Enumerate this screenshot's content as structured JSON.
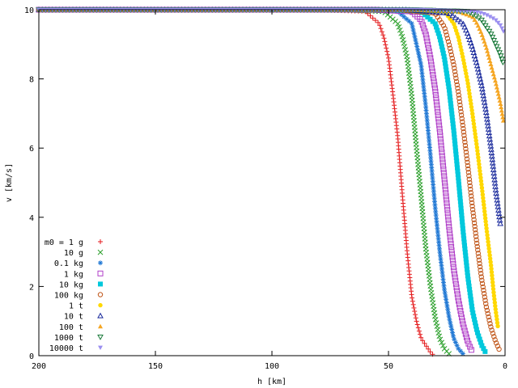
{
  "chart_data": {
    "type": "scatter",
    "title": "",
    "xlabel": "h [km]",
    "ylabel": "v [km/s]",
    "xlim": [
      200,
      0
    ],
    "ylim": [
      0,
      10
    ],
    "x_reversed": true,
    "x_ticks": [
      "200",
      "150",
      "100",
      "50",
      "0"
    ],
    "y_ticks": [
      "0",
      "2",
      "4",
      "6",
      "8",
      "10"
    ],
    "grid": false,
    "legend_position": "bottom-left",
    "series": [
      {
        "name": "m0 = 1 g",
        "color": "#e41a1c",
        "marker": "plus",
        "points": [
          [
            200,
            10
          ],
          [
            80,
            10
          ],
          [
            60,
            9.95
          ],
          [
            54,
            9.6
          ],
          [
            52,
            9.2
          ],
          [
            50,
            8.6
          ],
          [
            48,
            7.5
          ],
          [
            46,
            6.3
          ],
          [
            44,
            4.6
          ],
          [
            42,
            3.0
          ],
          [
            40,
            1.7
          ],
          [
            38,
            1.0
          ],
          [
            36,
            0.5
          ],
          [
            34,
            0.3
          ],
          [
            32,
            0.1
          ],
          [
            30.5,
            0.0
          ]
        ]
      },
      {
        "name": "10 g",
        "color": "#2ca02c",
        "marker": "cross",
        "points": [
          [
            200,
            10
          ],
          [
            70,
            10
          ],
          [
            52,
            9.95
          ],
          [
            46,
            9.6
          ],
          [
            44,
            9.2
          ],
          [
            42,
            8.6
          ],
          [
            40,
            7.5
          ],
          [
            38,
            6.0
          ],
          [
            36,
            4.6
          ],
          [
            34,
            3.1
          ],
          [
            32,
            2.0
          ],
          [
            30,
            1.1
          ],
          [
            28,
            0.5
          ],
          [
            26,
            0.2
          ],
          [
            24,
            0.05
          ]
        ]
      },
      {
        "name": "0.1 kg",
        "color": "#1f77d4",
        "marker": "star",
        "points": [
          [
            200,
            10
          ],
          [
            62,
            10
          ],
          [
            46,
            9.95
          ],
          [
            40,
            9.6
          ],
          [
            38,
            9.0
          ],
          [
            36,
            8.4
          ],
          [
            34,
            7.2
          ],
          [
            32,
            5.8
          ],
          [
            30,
            4.3
          ],
          [
            28,
            3.0
          ],
          [
            26,
            1.9
          ],
          [
            24,
            1.1
          ],
          [
            22,
            0.5
          ],
          [
            20,
            0.2
          ],
          [
            18,
            0.05
          ]
        ]
      },
      {
        "name": "1 kg",
        "color": "#b03fc8",
        "marker": "open-square",
        "points": [
          [
            200,
            10
          ],
          [
            56,
            10
          ],
          [
            40,
            9.95
          ],
          [
            36,
            9.7
          ],
          [
            34,
            9.3
          ],
          [
            32,
            8.6
          ],
          [
            30,
            7.7
          ],
          [
            28,
            6.5
          ],
          [
            26,
            5.1
          ],
          [
            24,
            3.7
          ],
          [
            22,
            2.5
          ],
          [
            20,
            1.6
          ],
          [
            18,
            0.9
          ],
          [
            16,
            0.4
          ],
          [
            14,
            0.1
          ]
        ]
      },
      {
        "name": "10 kg",
        "color": "#00c8dc",
        "marker": "filled-square",
        "points": [
          [
            200,
            10
          ],
          [
            50,
            10
          ],
          [
            36,
            9.95
          ],
          [
            30,
            9.6
          ],
          [
            28,
            9.2
          ],
          [
            26,
            8.6
          ],
          [
            24,
            7.7
          ],
          [
            22,
            6.5
          ],
          [
            20,
            5.1
          ],
          [
            18,
            3.6
          ],
          [
            16,
            2.3
          ],
          [
            14,
            1.3
          ],
          [
            12,
            0.7
          ],
          [
            10,
            0.3
          ],
          [
            8,
            0.05
          ]
        ]
      },
      {
        "name": "100 kg",
        "color": "#c0561a",
        "marker": "open-circle",
        "points": [
          [
            200,
            10
          ],
          [
            46,
            10
          ],
          [
            30,
            9.9
          ],
          [
            26,
            9.5
          ],
          [
            24,
            9.0
          ],
          [
            22,
            8.4
          ],
          [
            20,
            7.6
          ],
          [
            18,
            6.6
          ],
          [
            16,
            5.5
          ],
          [
            14,
            4.3
          ],
          [
            12,
            3.2
          ],
          [
            10,
            2.2
          ],
          [
            8,
            1.4
          ],
          [
            6,
            0.8
          ],
          [
            4,
            0.4
          ],
          [
            2,
            0.1
          ]
        ]
      },
      {
        "name": "1 t",
        "color": "#ffd800",
        "marker": "filled-circle",
        "points": [
          [
            200,
            10
          ],
          [
            44,
            10
          ],
          [
            26,
            9.95
          ],
          [
            22,
            9.6
          ],
          [
            20,
            9.2
          ],
          [
            18,
            8.6
          ],
          [
            16,
            7.9
          ],
          [
            14,
            7.0
          ],
          [
            12,
            6.0
          ],
          [
            10,
            4.9
          ],
          [
            8,
            3.7
          ],
          [
            6,
            2.6
          ],
          [
            5,
            1.9
          ],
          [
            4,
            1.3
          ],
          [
            3,
            0.8
          ]
        ]
      },
      {
        "name": "10 t",
        "color": "#1a2a9c",
        "marker": "open-triangle",
        "points": [
          [
            200,
            10
          ],
          [
            42,
            10
          ],
          [
            24,
            9.9
          ],
          [
            18,
            9.6
          ],
          [
            16,
            9.3
          ],
          [
            14,
            8.9
          ],
          [
            12,
            8.4
          ],
          [
            10,
            7.8
          ],
          [
            8,
            7.0
          ],
          [
            6,
            6.0
          ],
          [
            4,
            4.8
          ],
          [
            2,
            3.8
          ]
        ]
      },
      {
        "name": "100 t",
        "color": "#f5a623",
        "marker": "filled-triangle",
        "points": [
          [
            200,
            10
          ],
          [
            40,
            10
          ],
          [
            20,
            9.95
          ],
          [
            14,
            9.8
          ],
          [
            12,
            9.6
          ],
          [
            10,
            9.3
          ],
          [
            8,
            8.9
          ],
          [
            6,
            8.4
          ],
          [
            4,
            7.9
          ],
          [
            2,
            7.3
          ],
          [
            0.5,
            6.7
          ]
        ]
      },
      {
        "name": "1000 t",
        "color": "#1a7a3a",
        "marker": "open-triangle-down",
        "points": [
          [
            200,
            10
          ],
          [
            38,
            10
          ],
          [
            16,
            9.95
          ],
          [
            12,
            9.8
          ],
          [
            10,
            9.7
          ],
          [
            8,
            9.5
          ],
          [
            6,
            9.3
          ],
          [
            4,
            9.0
          ],
          [
            2,
            8.7
          ],
          [
            0.5,
            8.4
          ]
        ]
      },
      {
        "name": "10000 t",
        "color": "#9b8ff0",
        "marker": "filled-triangle-down",
        "points": [
          [
            200,
            10
          ],
          [
            36,
            10
          ],
          [
            14,
            9.95
          ],
          [
            10,
            9.9
          ],
          [
            8,
            9.85
          ],
          [
            6,
            9.78
          ],
          [
            4,
            9.7
          ],
          [
            2,
            9.55
          ],
          [
            0.5,
            9.35
          ]
        ]
      }
    ]
  }
}
